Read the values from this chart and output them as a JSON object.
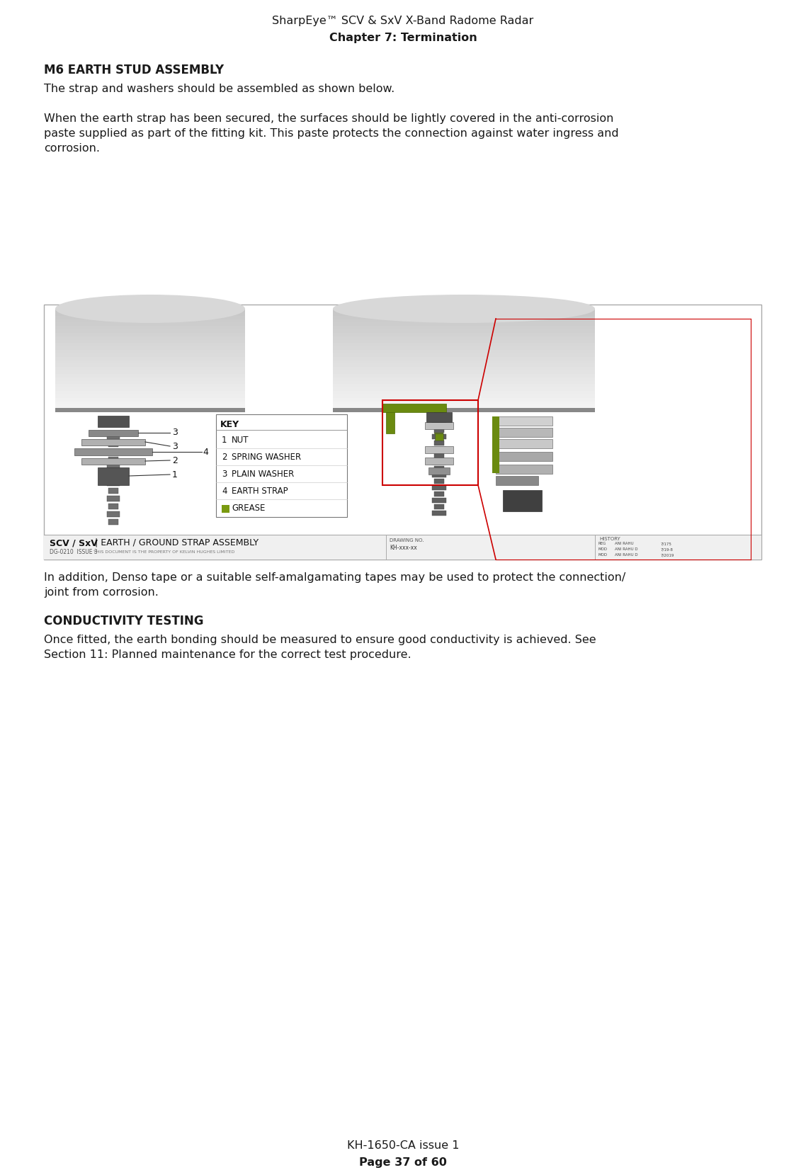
{
  "page_width": 11.38,
  "page_height": 16.52,
  "bg_color": "#ffffff",
  "header_line1": "SharpEye™ SCV & SxV X-Band Radome Radar",
  "header_line2": "Chapter 7: Termination",
  "section_title": "M6 EARTH STUD ASSEMBLY",
  "para1": "The strap and washers should be assembled as shown below.",
  "para2": "When the earth strap has been secured, the surfaces should be lightly covered in the anti-corrosion\npaste supplied as part of the fitting kit. This paste protects the connection against water ingress and\ncorrosion.",
  "para3": "In addition, Denso tape or a suitable self-amalgamating tapes may be used to protect the connection/\njoint from corrosion.",
  "section_title2": "CONDUCTIVITY TESTING",
  "para4": "Once fitted, the earth bonding should be measured to ensure good conductivity is achieved. See\nSection 11: Planned maintenance for the correct test procedure.",
  "footer_line1": "KH-1650-CA issue 1",
  "footer_line2": "Page 37 of 60",
  "text_color": "#1a1a1a",
  "font_size_header": 11.5,
  "font_size_body": 11.5,
  "font_size_section": 12,
  "font_size_footer": 11.5
}
